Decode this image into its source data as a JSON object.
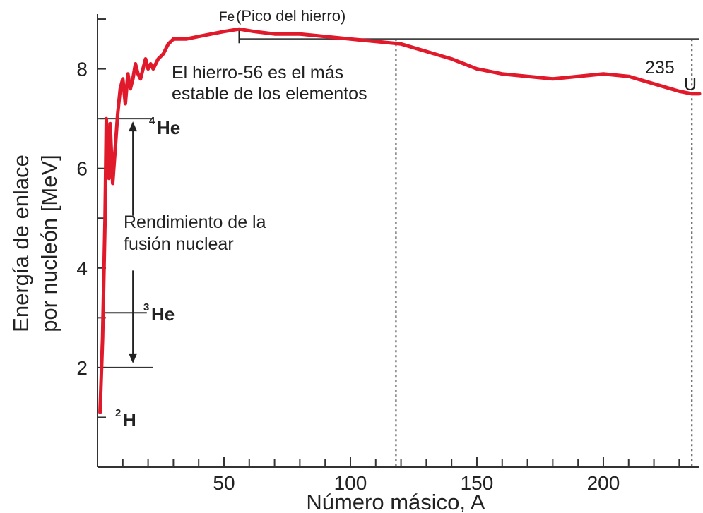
{
  "chart_data": {
    "type": "line",
    "xlabel": "Número másico, A",
    "ylabel_line1": "Energía de enlace",
    "ylabel_line2": "por nucleón [MeV]",
    "xlim": [
      0,
      238
    ],
    "ylim": [
      0,
      9.1
    ],
    "x_ticks": [
      50,
      100,
      150,
      200
    ],
    "y_ticks": [
      2,
      4,
      6,
      8
    ],
    "x_minor_step": 10,
    "y_minor_step": 1,
    "line_color": "#e0192b",
    "series": [
      {
        "x": [
          1,
          2,
          3,
          3.5,
          4,
          4.5,
          5,
          6,
          7,
          8,
          9,
          10,
          11,
          12,
          13,
          14,
          15,
          16,
          17,
          18,
          19,
          20,
          21,
          22,
          24,
          26,
          28,
          30,
          35,
          40,
          45,
          50,
          56,
          62,
          70,
          80,
          90,
          100,
          110,
          120,
          130,
          140,
          150,
          160,
          170,
          180,
          190,
          200,
          210,
          220,
          230,
          235,
          238
        ],
        "y": [
          1.1,
          2.6,
          5.0,
          7.0,
          6.2,
          5.8,
          6.9,
          5.7,
          6.4,
          7.1,
          7.6,
          7.8,
          7.3,
          7.9,
          7.6,
          7.8,
          8.1,
          7.9,
          7.8,
          8.0,
          8.2,
          8.0,
          8.1,
          8.0,
          8.2,
          8.3,
          8.5,
          8.6,
          8.6,
          8.65,
          8.7,
          8.75,
          8.8,
          8.75,
          8.7,
          8.7,
          8.65,
          8.6,
          8.55,
          8.5,
          8.35,
          8.2,
          8.0,
          7.9,
          7.85,
          7.8,
          7.85,
          7.9,
          7.85,
          7.7,
          7.55,
          7.5,
          7.5
        ]
      }
    ],
    "reference_lines": {
      "fe_peak_y": 8.6,
      "fe_peak_x": 56,
      "vertical_dotted_x": [
        118,
        235
      ],
      "he4_y": 7.0,
      "he3_y": 3.1,
      "h2_y": 2.0,
      "arrow_x": 14
    },
    "annotations": {
      "fe_peak": "(Pico del hierro)",
      "fe_symbol": "Fe",
      "iron_stable_line1": "El hierro-56 es el más",
      "iron_stable_line2": "estable de los elementos",
      "fusion_line1": "Rendimiento de la",
      "fusion_line2": "fusión nuclear",
      "u_mass": "235",
      "u_symbol": "U",
      "he4_mass": "4",
      "he4_symbol": "He",
      "he3_mass": "3",
      "he3_symbol": "He",
      "h2_mass": "2",
      "h2_symbol": "H"
    }
  }
}
